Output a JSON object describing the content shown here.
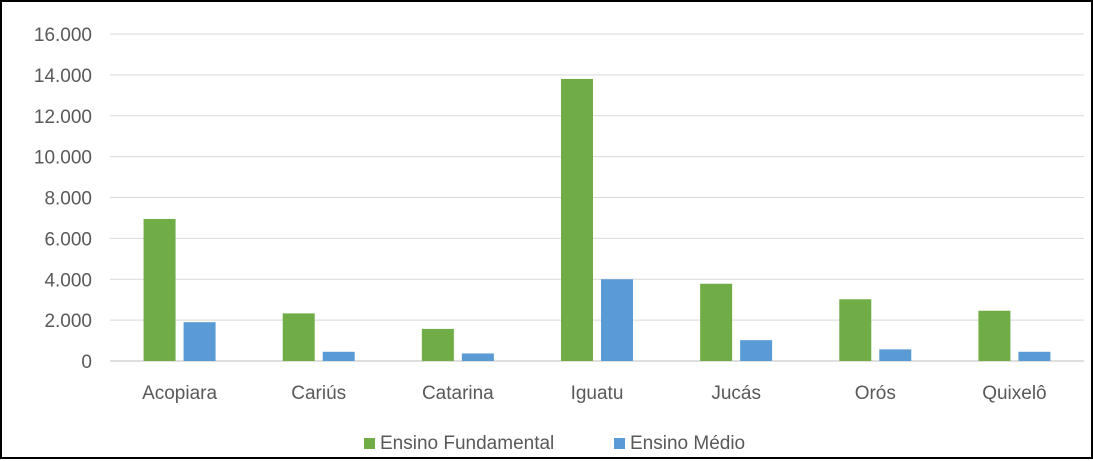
{
  "chart_data": {
    "type": "bar",
    "categories": [
      "Acopiara",
      "Cariús",
      "Catarina",
      "Iguatu",
      "Jucás",
      "Orós",
      "Quixelô"
    ],
    "series": [
      {
        "name": "Ensino Fundamental",
        "color": "#70AD47",
        "values": [
          6950,
          2330,
          1570,
          13800,
          3780,
          3020,
          2460
        ]
      },
      {
        "name": "Ensino Médio",
        "color": "#5B9BD5",
        "values": [
          1900,
          450,
          370,
          4000,
          1020,
          570,
          450
        ]
      }
    ],
    "yticks": [
      "0",
      "2.000",
      "4.000",
      "6.000",
      "8.000",
      "10.000",
      "12.000",
      "14.000",
      "16.000"
    ],
    "ylim": [
      0,
      16000
    ],
    "ystep": 2000,
    "grid": true,
    "legend_position": "bottom"
  }
}
